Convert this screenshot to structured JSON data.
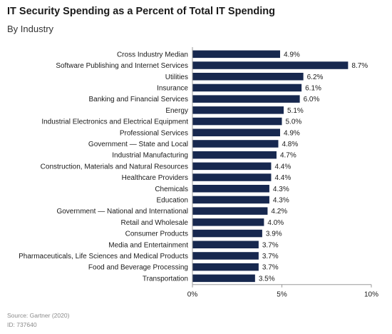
{
  "colors": {
    "bar": "#17284f",
    "axis": "#9a9a9a"
  },
  "chart_data": {
    "type": "bar",
    "orientation": "horizontal",
    "title": "IT Security Spending as a Percent of Total IT Spending",
    "subtitle": "By Industry",
    "categories": [
      "Cross Industry Median",
      "Software Publishing and Internet Services",
      "Utilities",
      "Insurance",
      "Banking and Financial Services",
      "Energy",
      "Industrial Electronics and Electrical Equipment",
      "Professional Services",
      "Government — State and Local",
      "Industrial Manufacturing",
      "Construction, Materials and Natural Resources",
      "Healthcare Providers",
      "Chemicals",
      "Education",
      "Government — National and International",
      "Retail and Wholesale",
      "Consumer Products",
      "Media and Entertainment",
      "Pharmaceuticals, Life Sciences and Medical Products",
      "Food and Beverage Processing",
      "Transportation"
    ],
    "values": [
      4.9,
      8.7,
      6.2,
      6.1,
      6.0,
      5.1,
      5.0,
      4.9,
      4.8,
      4.7,
      4.4,
      4.4,
      4.3,
      4.3,
      4.2,
      4.0,
      3.9,
      3.7,
      3.7,
      3.7,
      3.5
    ],
    "value_labels": [
      "4.9%",
      "8.7%",
      "6.2%",
      "6.1%",
      "6.0%",
      "5.1%",
      "5.0%",
      "4.9%",
      "4.8%",
      "4.7%",
      "4.4%",
      "4.4%",
      "4.3%",
      "4.3%",
      "4.2%",
      "4.0%",
      "3.9%",
      "3.7%",
      "3.7%",
      "3.7%",
      "3.5%"
    ],
    "xlim": [
      0,
      10
    ],
    "xticks": [
      0,
      5,
      10
    ],
    "xtick_labels": [
      "0%",
      "5%",
      "10%"
    ],
    "grid": false,
    "legend": "none"
  },
  "footer": {
    "source": "Source: Gartner (2020)",
    "id": "ID: 737640"
  }
}
